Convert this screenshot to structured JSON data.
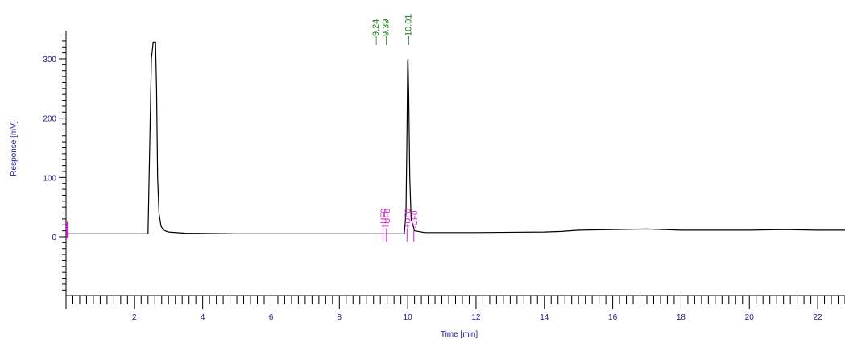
{
  "colors": {
    "axis_text": "#1a1a8c",
    "trace": "#000000",
    "peak_label": "#1a7a1a",
    "event_label": "#cc22cc"
  },
  "chart_data": {
    "type": "line",
    "xlabel": "Time [min]",
    "ylabel": "Response [mV]",
    "xlim": [
      0,
      22.8
    ],
    "ylim": [
      -100,
      340
    ],
    "x_ticks": [
      "2",
      "4",
      "6",
      "8",
      "10",
      "12",
      "14",
      "16",
      "18",
      "20",
      "22"
    ],
    "y_ticks": [
      "0",
      "100",
      "200",
      "300"
    ],
    "series": [
      {
        "x": [
          0.0,
          2.4,
          2.5,
          2.55,
          2.6,
          2.62,
          2.65,
          2.68,
          2.72,
          2.78,
          2.85,
          3.0,
          3.5,
          5.0,
          8.0,
          9.3,
          9.9,
          9.95,
          9.98,
          10.0,
          10.01,
          10.03,
          10.06,
          10.1,
          10.2,
          10.5,
          12.0,
          14.0,
          14.5,
          15.0,
          16.0,
          17.0,
          17.5,
          18.0,
          19.0,
          20.0,
          21.0,
          22.0,
          22.8
        ],
        "y": [
          5,
          5,
          300,
          328,
          328,
          328,
          250,
          100,
          40,
          18,
          11,
          8,
          6,
          5,
          5,
          5,
          5,
          40,
          180,
          295,
          300,
          240,
          100,
          30,
          10,
          7,
          7,
          8,
          9,
          11,
          12,
          13,
          12,
          11,
          11,
          11,
          12,
          11,
          11
        ]
      }
    ],
    "peak_labels": [
      "9.24",
      "9.39",
      "10.01"
    ],
    "peak_label_times": [
      9.24,
      9.39,
      10.01
    ],
    "event_markers": [
      {
        "time": 9.28,
        "label": "+UF0"
      },
      {
        "time": 9.38,
        "label": "+UF0"
      },
      {
        "time": 9.98,
        "label": "+UF0"
      },
      {
        "time": 10.18,
        "label": "-UF0"
      }
    ],
    "start_marker_time": 0.05,
    "grid": false
  }
}
